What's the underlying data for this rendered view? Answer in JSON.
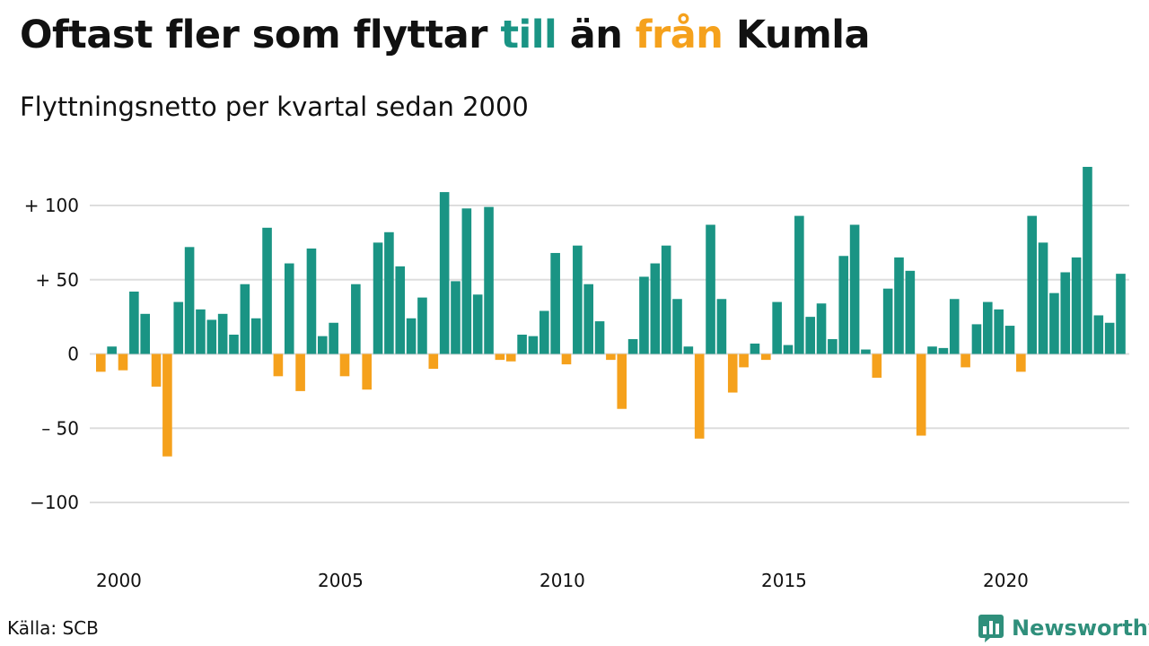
{
  "header": {
    "title_parts": [
      "Oftast fler som flyttar ",
      "till",
      " än ",
      "från",
      " Kumla"
    ],
    "subtitle": "Flyttningsnetto per kvartal sedan 2000"
  },
  "footer": {
    "source": "Källa: SCB",
    "brand": "Newsworthy"
  },
  "colors": {
    "positive": "#1a9484",
    "negative": "#f5a11c",
    "grid": "#dddddd",
    "brand": "#2f8f7b"
  },
  "icons": {
    "logo": "bar-chart-speech-bubble-icon"
  },
  "chart_data": {
    "type": "bar",
    "xlabel": "",
    "ylabel": "",
    "x_start": "2000 Q1",
    "x_tick_labels": [
      "2000",
      "2005",
      "2010",
      "2015",
      "2020"
    ],
    "y_ticks": [
      100,
      50,
      0,
      -50,
      -100
    ],
    "y_tick_labels": [
      "+ 100",
      "+  50",
      "0",
      "– 50",
      "−100"
    ],
    "ylim": [
      -130,
      130
    ],
    "grid": true,
    "legend": "none",
    "values": [
      -12,
      5,
      -11,
      42,
      27,
      -22,
      -69,
      35,
      72,
      30,
      23,
      27,
      13,
      47,
      24,
      85,
      -15,
      61,
      -25,
      71,
      12,
      21,
      -15,
      47,
      -24,
      75,
      82,
      59,
      24,
      38,
      -10,
      109,
      49,
      98,
      40,
      99,
      -4,
      -5,
      13,
      12,
      29,
      68,
      -7,
      73,
      47,
      22,
      -4,
      -37,
      10,
      52,
      61,
      73,
      37,
      5,
      -57,
      87,
      37,
      -26,
      -9,
      7,
      -4,
      35,
      6,
      93,
      25,
      34,
      10,
      66,
      87,
      3,
      -16,
      44,
      65,
      56,
      -55,
      5,
      4,
      37,
      -9,
      20,
      35,
      30,
      19,
      -12,
      93,
      75,
      41,
      55,
      65,
      126,
      26,
      21,
      54
    ]
  }
}
